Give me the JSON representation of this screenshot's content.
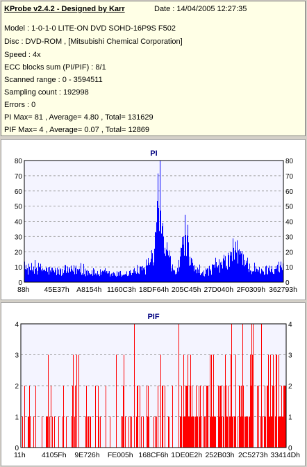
{
  "info": {
    "title": "KProbe v2.4.2 - Designed by Karr",
    "date": "Date : 14/04/2005 12:27:35",
    "lines": [
      "Model : 1-0-1-0 LITE-ON DVD SOHD-16P9S   F502",
      "Disc : DVD-ROM ,  [Mitsubishi Chemical Corporation]",
      "Speed : 4x",
      "ECC blocks sum (PI/PIF) : 8/1",
      "Scanned range : 0 - 3594511",
      "Sampling count : 192998",
      "Errors : 0",
      "PI Max= 81 , Average= 4.80 , Total= 131629",
      "PIF Max= 4 , Average= 0.07 , Total= 12869"
    ]
  },
  "chart_data": [
    {
      "type": "bar",
      "title": "PI",
      "color": "#0000ff",
      "ylim": [
        0,
        80
      ],
      "yticks": [
        0,
        10,
        20,
        30,
        40,
        50,
        60,
        70,
        80
      ],
      "xticklabels": [
        "88h",
        "45E37h",
        "A8154h",
        "1160C3h",
        "18DF64h",
        "205C45h",
        "27D040h",
        "2F0309h",
        "362793h"
      ],
      "grid": true,
      "right_axis": true,
      "profile": [
        [
          0.0,
          10
        ],
        [
          0.05,
          11
        ],
        [
          0.1,
          9
        ],
        [
          0.15,
          8
        ],
        [
          0.2,
          10
        ],
        [
          0.25,
          8
        ],
        [
          0.3,
          7
        ],
        [
          0.35,
          6
        ],
        [
          0.4,
          7
        ],
        [
          0.45,
          9
        ],
        [
          0.48,
          12
        ],
        [
          0.5,
          18
        ],
        [
          0.51,
          30
        ],
        [
          0.515,
          55
        ],
        [
          0.52,
          81
        ],
        [
          0.525,
          60
        ],
        [
          0.53,
          40
        ],
        [
          0.54,
          30
        ],
        [
          0.55,
          20
        ],
        [
          0.57,
          10
        ],
        [
          0.59,
          8
        ],
        [
          0.6,
          15
        ],
        [
          0.61,
          30
        ],
        [
          0.62,
          38
        ],
        [
          0.63,
          35
        ],
        [
          0.64,
          15
        ],
        [
          0.66,
          9
        ],
        [
          0.7,
          8
        ],
        [
          0.74,
          12
        ],
        [
          0.78,
          16
        ],
        [
          0.8,
          20
        ],
        [
          0.82,
          24
        ],
        [
          0.84,
          22
        ],
        [
          0.86,
          15
        ],
        [
          0.88,
          10
        ],
        [
          0.92,
          8
        ],
        [
          0.96,
          12
        ],
        [
          1.0,
          12
        ]
      ]
    },
    {
      "type": "bar",
      "title": "PIF",
      "color": "#ff0000",
      "ylim": [
        0,
        4
      ],
      "yticks": [
        0,
        1,
        2,
        3,
        4
      ],
      "xticklabels": [
        "11h",
        "4105Fh",
        "9E726h",
        "FE005h",
        "168CF6h",
        "1DE0E2h",
        "252B03h",
        "2C5273h",
        "33414Dh"
      ],
      "grid": true,
      "right_axis": true
    }
  ]
}
